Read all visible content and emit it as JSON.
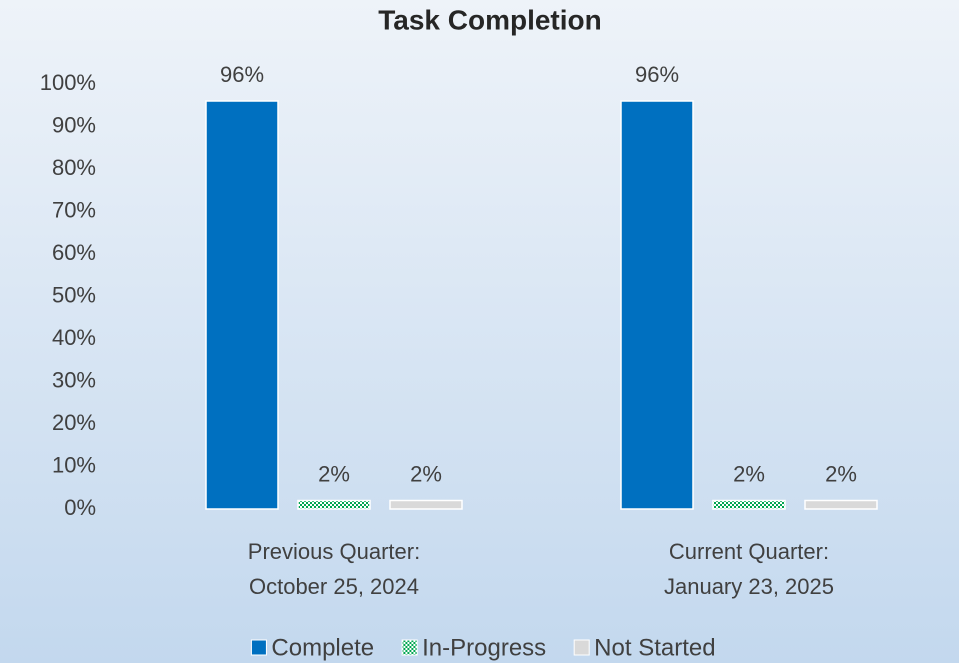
{
  "chart_data": {
    "type": "bar",
    "title": "Task Completion",
    "categories": [
      [
        "Previous Quarter:",
        "October 25, 2024"
      ],
      [
        "Current Quarter:",
        "January 23, 2025"
      ]
    ],
    "series": [
      {
        "name": "Complete",
        "color": "#0070c0",
        "values": [
          96,
          96
        ],
        "value_labels": [
          "96%",
          "96%"
        ]
      },
      {
        "name": "In-Progress",
        "color": "#00a651",
        "pattern": "checker",
        "values": [
          2,
          2
        ],
        "value_labels": [
          "2%",
          "2%"
        ]
      },
      {
        "name": "Not Started",
        "color": "#d9d9d9",
        "values": [
          2,
          2
        ],
        "value_labels": [
          "2%",
          "2%"
        ]
      }
    ],
    "ylim": [
      0,
      100
    ],
    "yticks": [
      {
        "value": 0,
        "label": "0%"
      },
      {
        "value": 10,
        "label": "10%"
      },
      {
        "value": 20,
        "label": "20%"
      },
      {
        "value": 30,
        "label": "30%"
      },
      {
        "value": 40,
        "label": "40%"
      },
      {
        "value": 50,
        "label": "50%"
      },
      {
        "value": 60,
        "label": "60%"
      },
      {
        "value": 70,
        "label": "70%"
      },
      {
        "value": 80,
        "label": "80%"
      },
      {
        "value": 90,
        "label": "90%"
      },
      {
        "value": 100,
        "label": "100%"
      }
    ],
    "grid": false,
    "legend": "bottom"
  }
}
